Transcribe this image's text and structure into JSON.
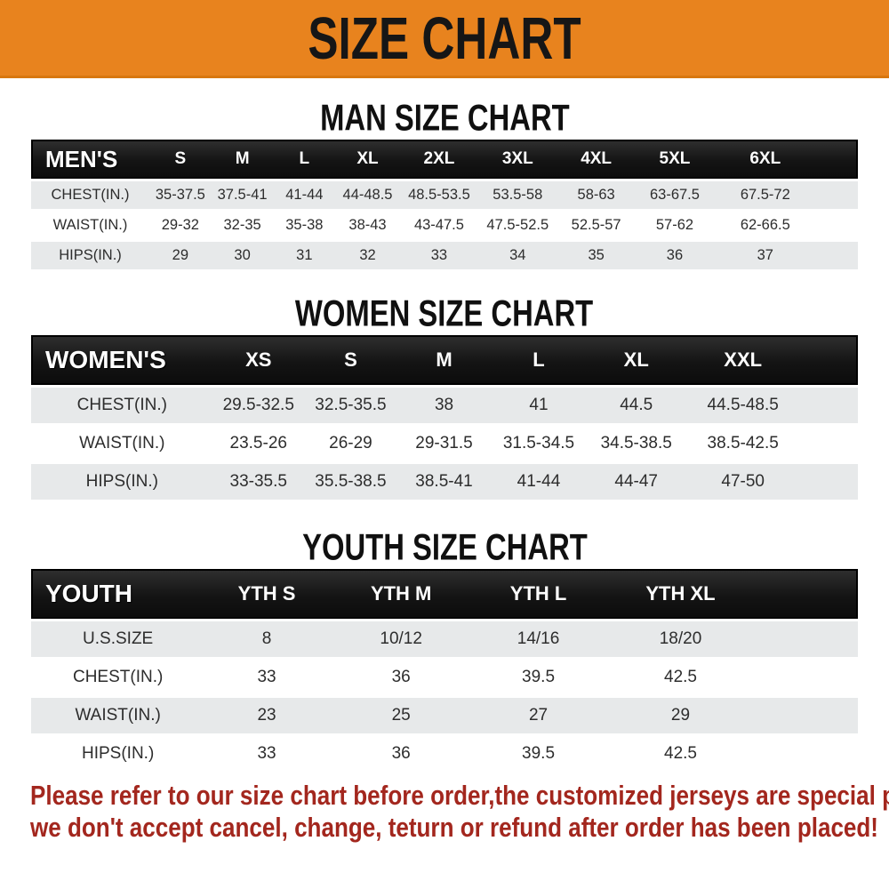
{
  "banner": {
    "title": "SIZE CHART"
  },
  "chart_data": [
    {
      "type": "table",
      "title": "MAN SIZE CHART",
      "group_label": "MEN'S",
      "columns": [
        "S",
        "M",
        "L",
        "XL",
        "2XL",
        "3XL",
        "4XL",
        "5XL",
        "6XL"
      ],
      "rows": [
        {
          "label": "CHEST(IN.)",
          "values": [
            "35-37.5",
            "37.5-41",
            "41-44",
            "44-48.5",
            "48.5-53.5",
            "53.5-58",
            "58-63",
            "63-67.5",
            "67.5-72"
          ]
        },
        {
          "label": "WAIST(IN.)",
          "values": [
            "29-32",
            "32-35",
            "35-38",
            "38-43",
            "43-47.5",
            "47.5-52.5",
            "52.5-57",
            "57-62",
            "62-66.5"
          ]
        },
        {
          "label": "HIPS(IN.)",
          "values": [
            "29",
            "30",
            "31",
            "32",
            "33",
            "34",
            "35",
            "36",
            "37"
          ]
        }
      ]
    },
    {
      "type": "table",
      "title": "WOMEN SIZE CHART",
      "group_label": "WOMEN'S",
      "columns": [
        "XS",
        "S",
        "M",
        "L",
        "XL",
        "XXL"
      ],
      "rows": [
        {
          "label": "CHEST(IN.)",
          "values": [
            "29.5-32.5",
            "32.5-35.5",
            "38",
            "41",
            "44.5",
            "44.5-48.5"
          ]
        },
        {
          "label": "WAIST(IN.)",
          "values": [
            "23.5-26",
            "26-29",
            "29-31.5",
            "31.5-34.5",
            "34.5-38.5",
            "38.5-42.5"
          ]
        },
        {
          "label": "HIPS(IN.)",
          "values": [
            "33-35.5",
            "35.5-38.5",
            "38.5-41",
            "41-44",
            "44-47",
            "47-50"
          ]
        }
      ]
    },
    {
      "type": "table",
      "title": "YOUTH SIZE CHART",
      "group_label": "YOUTH",
      "columns": [
        "YTH S",
        "YTH M",
        "YTH L",
        "YTH XL"
      ],
      "rows": [
        {
          "label": "U.S.SIZE",
          "values": [
            "8",
            "10/12",
            "14/16",
            "18/20"
          ]
        },
        {
          "label": "CHEST(IN.)",
          "values": [
            "33",
            "36",
            "39.5",
            "42.5"
          ]
        },
        {
          "label": "WAIST(IN.)",
          "values": [
            "23",
            "25",
            "27",
            "29"
          ]
        },
        {
          "label": "HIPS(IN.)",
          "values": [
            "33",
            "36",
            "39.5",
            "42.5"
          ]
        }
      ]
    }
  ],
  "footer": {
    "line1": "Please refer to our size chart before order,the customized jerseys are special products,",
    "line2": "we don't accept cancel, change, teturn or refund after order has been placed!"
  },
  "colors": {
    "banner_bg": "#E8831E",
    "banner_text": "#161616",
    "header_bar_bg": "#191919",
    "header_bar_text": "#FFFFFF",
    "row_shaded_bg": "#E7E9EA",
    "row_white_bg": "#FFFFFF",
    "body_text": "#2D2D2D",
    "footer_text": "#A3271E"
  }
}
